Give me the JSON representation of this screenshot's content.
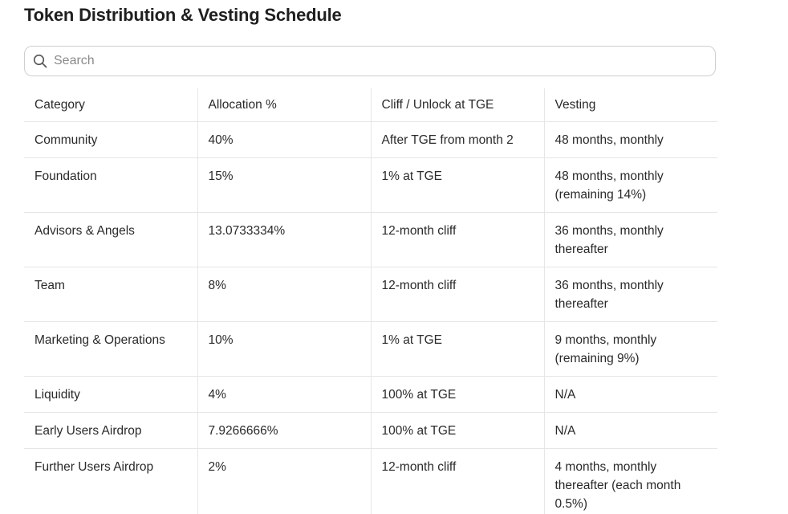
{
  "page": {
    "title": "Token Distribution & Vesting Schedule"
  },
  "search": {
    "placeholder": "Search",
    "value": ""
  },
  "table": {
    "headers": [
      "Category",
      "Allocation %",
      "Cliff / Unlock at TGE",
      "Vesting"
    ],
    "rows": [
      [
        "Community",
        "40%",
        "After TGE from month 2",
        "48 months, monthly"
      ],
      [
        "Foundation",
        "15%",
        "1% at TGE",
        "48 months, monthly (remaining 14%)"
      ],
      [
        "Advisors & Angels",
        "13.0733334%",
        "12-month cliff",
        "36 months, monthly thereafter"
      ],
      [
        "Team",
        "8%",
        "12-month cliff",
        "36 months, monthly thereafter"
      ],
      [
        "Marketing & Operations",
        "10%",
        "1% at TGE",
        "9 months,  monthly (remaining 9%)"
      ],
      [
        "Liquidity",
        "4%",
        "100% at TGE",
        "N/A"
      ],
      [
        "Early Users Airdrop",
        "7.9266666%",
        "100% at TGE",
        "N/A"
      ],
      [
        "Further Users Airdrop",
        "2%",
        "12-month cliff",
        "4 months, monthly thereafter (each month 0.5%)"
      ]
    ]
  }
}
